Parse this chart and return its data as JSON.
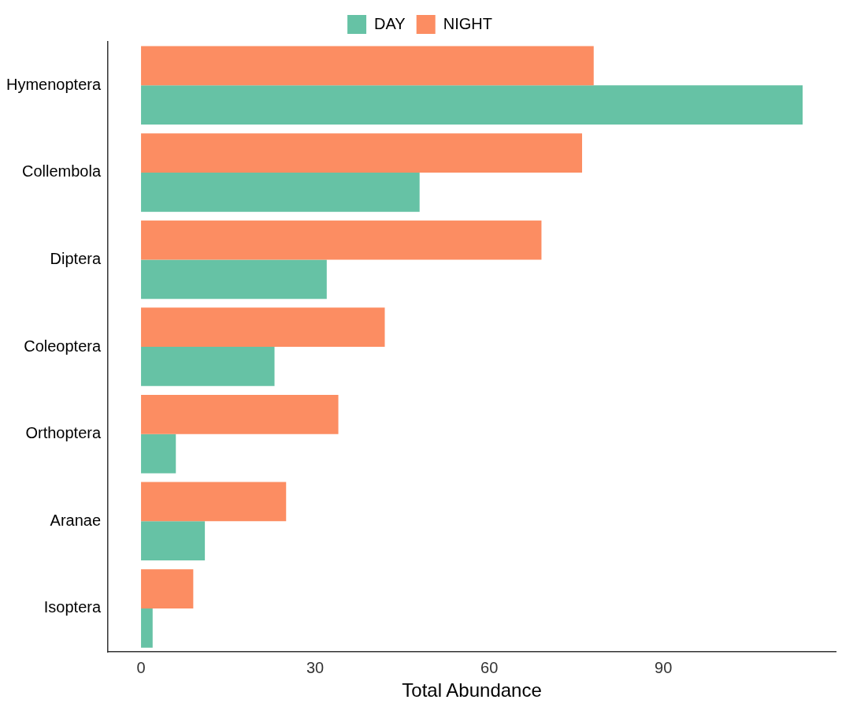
{
  "chart_data": {
    "type": "bar",
    "orientation": "horizontal",
    "xlabel": "Total Abundance",
    "categories": [
      "Hymenoptera",
      "Collembola",
      "Diptera",
      "Coleoptera",
      "Orthoptera",
      "Aranae",
      "Isoptera"
    ],
    "series": [
      {
        "name": "DAY",
        "color": "#66c2a5",
        "values": [
          114,
          48,
          32,
          23,
          6,
          11,
          2
        ]
      },
      {
        "name": "NIGHT",
        "color": "#fc8d62",
        "values": [
          78,
          76,
          69,
          42,
          34,
          25,
          9
        ]
      }
    ],
    "xlim": [
      -5.7,
      119.7
    ],
    "xticks": [
      0,
      30,
      60,
      90
    ],
    "grid": false,
    "legend": "top"
  }
}
